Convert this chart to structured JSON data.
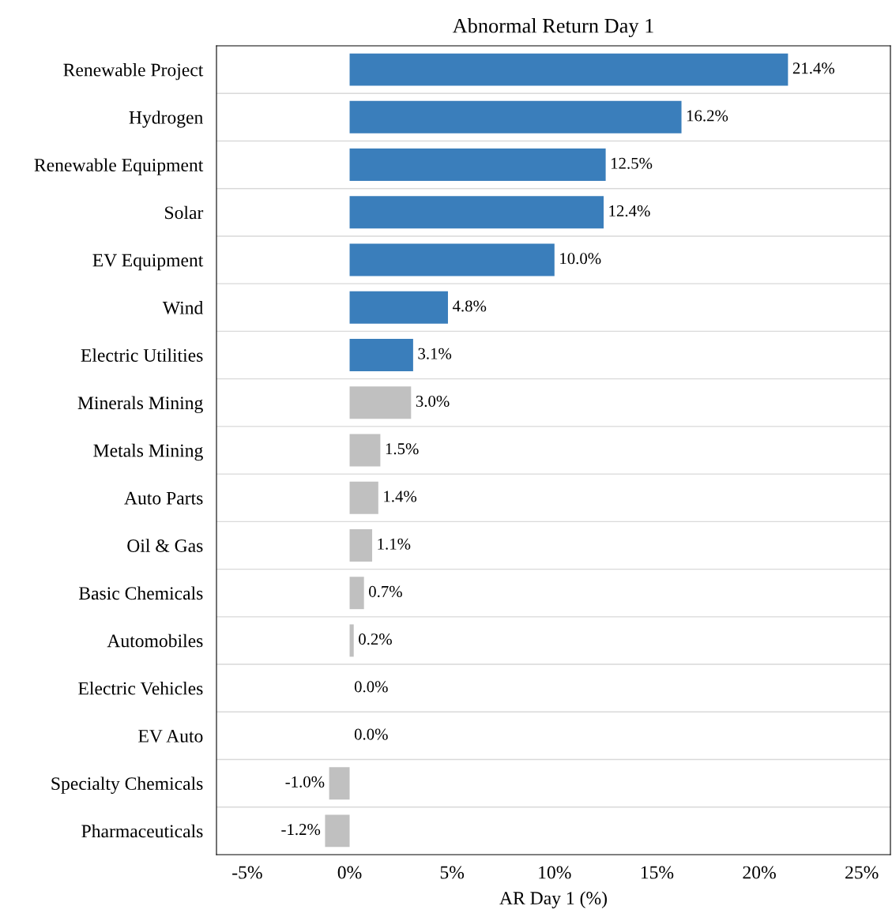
{
  "chart_data": {
    "type": "bar",
    "orientation": "horizontal",
    "title": "Abnormal Return Day 1",
    "xlabel": "AR Day 1 (%)",
    "categories": [
      "Renewable Project",
      "Hydrogen",
      "Renewable Equipment",
      "Solar",
      "EV Equipment",
      "Wind",
      "Electric Utilities",
      "Minerals Mining",
      "Metals Mining",
      "Auto Parts",
      "Oil & Gas",
      "Basic Chemicals",
      "Automobiles",
      "Electric Vehicles",
      "EV Auto",
      "Specialty Chemicals",
      "Pharmaceuticals"
    ],
    "values": [
      21.4,
      16.2,
      12.5,
      12.4,
      10.0,
      4.8,
      3.1,
      3.0,
      1.5,
      1.4,
      1.1,
      0.7,
      0.2,
      0.0,
      0.0,
      -1.0,
      -1.2
    ],
    "colors": [
      "#3a7ebb",
      "#3a7ebb",
      "#3a7ebb",
      "#3a7ebb",
      "#3a7ebb",
      "#3a7ebb",
      "#3a7ebb",
      "#c0c0c0",
      "#c0c0c0",
      "#c0c0c0",
      "#c0c0c0",
      "#c0c0c0",
      "#c0c0c0",
      "#c0c0c0",
      "#c0c0c0",
      "#c0c0c0",
      "#c0c0c0"
    ],
    "value_labels": [
      "21.4%",
      "16.2%",
      "12.5%",
      "12.4%",
      "10.0%",
      "4.8%",
      "3.1%",
      "3.0%",
      "1.5%",
      "1.4%",
      "1.1%",
      "0.7%",
      "0.2%",
      "0.0%",
      "0.0%",
      "-1.0%",
      "-1.2%"
    ],
    "xlim": [
      -6.5,
      26.4
    ],
    "xticks": [
      {
        "value": -5,
        "label": "-5%"
      },
      {
        "value": 0,
        "label": "0%"
      },
      {
        "value": 5,
        "label": "5%"
      },
      {
        "value": 10,
        "label": "10%"
      },
      {
        "value": 15,
        "label": "15%"
      },
      {
        "value": 20,
        "label": "20%"
      },
      {
        "value": 25,
        "label": "25%"
      }
    ],
    "grid": "y",
    "legend": false
  }
}
